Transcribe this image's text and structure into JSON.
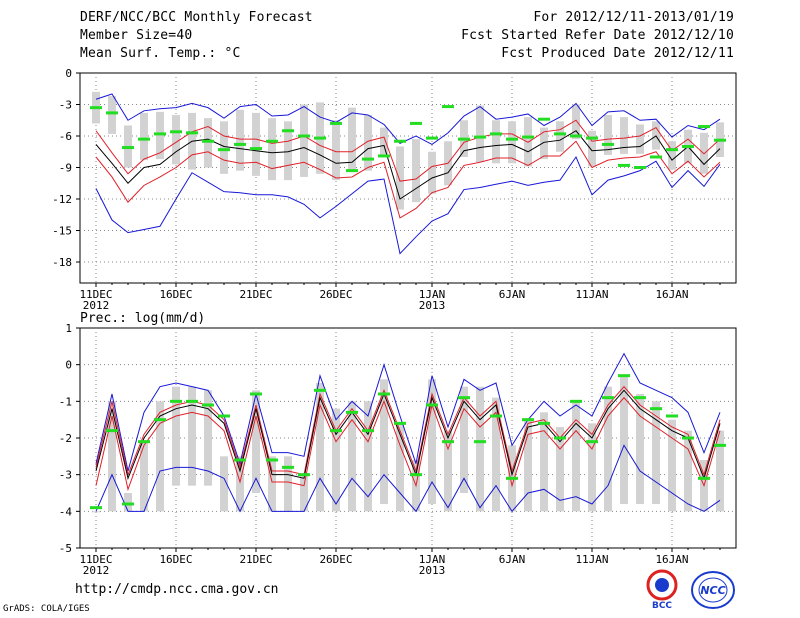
{
  "header": {
    "title": "DERF/NCC/BCC Monthly Forecast",
    "member_size": "Member Size=40",
    "variable": "Mean Surf. Temp.: °C",
    "period": "For 2012/12/11-2013/01/19",
    "fcst_started": "Fcst Started Refer Date 2012/12/10",
    "fcst_produced": "Fcst Produced Date 2012/12/11"
  },
  "footer": {
    "url": "http://cmdp.ncc.cma.gov.cn",
    "grads": "GrADS: COLA/IGES",
    "logo_bcc": "BCC",
    "logo_ncc": "NCC"
  },
  "colors": {
    "box": "#d2d2d2",
    "median": "#000000",
    "quartile": "#e0202a",
    "extreme": "#1818d8",
    "observed": "#22dd22"
  },
  "chart_data": [
    {
      "type": "box",
      "title": "Mean Surf. Temp.: °C",
      "x_tick_labels": [
        "11DEC\n2012",
        "16DEC",
        "21DEC",
        "26DEC",
        "1JAN\n2013",
        "6JAN",
        "11JAN",
        "16JAN"
      ],
      "x_tick_index": [
        0,
        5,
        10,
        15,
        21,
        26,
        31,
        36
      ],
      "ylim": [
        -20,
        0
      ],
      "yticks": [
        0,
        -3,
        -6,
        -9,
        -12,
        -15,
        -18
      ],
      "days": 40,
      "median": [
        -6.8,
        -8.6,
        -10.5,
        -9.0,
        -8.7,
        -7.5,
        -6.5,
        -6.3,
        -7.0,
        -7.2,
        -7.4,
        -7.6,
        -7.5,
        -7.1,
        -7.8,
        -8.6,
        -8.5,
        -7.2,
        -6.9,
        -12.0,
        -11.0,
        -10.0,
        -9.5,
        -7.4,
        -7.1,
        -6.9,
        -6.8,
        -7.5,
        -6.6,
        -6.4,
        -5.5,
        -7.4,
        -7.3,
        -7.1,
        -7.0,
        -6.0,
        -8.3,
        -7.0,
        -8.7,
        -7.2
      ],
      "q75": [
        -5.5,
        -7.6,
        -9.6,
        -8.2,
        -7.6,
        -6.6,
        -5.6,
        -5.1,
        -6.0,
        -6.3,
        -6.3,
        -6.7,
        -6.5,
        -6.0,
        -6.9,
        -7.5,
        -7.5,
        -6.5,
        -6.1,
        -10.3,
        -10.1,
        -8.9,
        -8.6,
        -6.6,
        -6.1,
        -5.8,
        -5.8,
        -6.6,
        -5.6,
        -5.4,
        -4.5,
        -6.5,
        -6.3,
        -6.2,
        -6.0,
        -5.2,
        -7.4,
        -6.3,
        -7.7,
        -6.3
      ],
      "q25": [
        -8.0,
        -9.9,
        -12.3,
        -10.7,
        -9.9,
        -9.0,
        -7.8,
        -7.5,
        -8.3,
        -8.6,
        -8.5,
        -9.1,
        -8.8,
        -8.5,
        -9.2,
        -10.0,
        -9.9,
        -9.0,
        -8.5,
        -13.8,
        -12.9,
        -11.4,
        -10.9,
        -8.8,
        -8.5,
        -8.1,
        -8.1,
        -8.8,
        -7.9,
        -7.9,
        -6.5,
        -9.0,
        -8.3,
        -8.1,
        -8.0,
        -7.5,
        -9.6,
        -8.4,
        -9.9,
        -8.5
      ],
      "max": [
        -2.5,
        -2.0,
        -4.5,
        -3.6,
        -3.4,
        -3.3,
        -2.9,
        -3.3,
        -4.3,
        -3.2,
        -3.0,
        -4.1,
        -4.0,
        -3.2,
        -4.2,
        -4.7,
        -3.8,
        -4.0,
        -4.9,
        -6.7,
        -6.0,
        -6.8,
        -5.7,
        -4.1,
        -3.2,
        -4.4,
        -4.2,
        -3.9,
        -5.0,
        -4.2,
        -2.9,
        -5.0,
        -3.7,
        -3.6,
        -4.5,
        -4.4,
        -6.1,
        -5.0,
        -5.4,
        -4.4
      ],
      "min": [
        -11.0,
        -14.0,
        -15.2,
        -14.9,
        -14.6,
        -12.0,
        -9.5,
        -10.4,
        -11.3,
        -11.4,
        -11.6,
        -11.6,
        -11.8,
        -12.5,
        -13.8,
        -12.7,
        -11.5,
        -10.3,
        -10.1,
        -17.2,
        -15.6,
        -14.1,
        -13.4,
        -11.1,
        -10.9,
        -10.6,
        -10.3,
        -10.7,
        -10.4,
        -10.2,
        -8.0,
        -11.6,
        -10.2,
        -9.8,
        -9.3,
        -8.4,
        -10.9,
        -9.3,
        -10.8,
        -8.7
      ],
      "box_top": [
        -1.8,
        -2.2,
        -5.0,
        -3.8,
        -3.7,
        -4.0,
        -3.8,
        -4.3,
        -4.6,
        -3.5,
        -3.8,
        -4.3,
        -4.6,
        -3.0,
        -2.8,
        -4.5,
        -3.3,
        -4.0,
        -5.2,
        -7.0,
        -6.3,
        -7.5,
        -6.5,
        -4.5,
        -3.1,
        -4.5,
        -4.6,
        -4.2,
        -5.2,
        -4.6,
        -3.0,
        -5.5,
        -4.0,
        -4.2,
        -4.9,
        -4.6,
        -6.5,
        -5.4,
        -5.7,
        -4.7
      ],
      "box_bot": [
        -4.8,
        -5.8,
        -9.0,
        -8.3,
        -8.2,
        -8.7,
        -9.2,
        -9.0,
        -9.6,
        -9.3,
        -9.8,
        -10.2,
        -10.2,
        -9.9,
        -9.6,
        -10.2,
        -9.4,
        -9.3,
        -8.0,
        -13.0,
        -12.3,
        -11.5,
        -10.7,
        -8.0,
        -8.5,
        -8.6,
        -8.6,
        -8.9,
        -8.2,
        -7.5,
        -6.3,
        -8.9,
        -7.8,
        -7.7,
        -7.7,
        -7.3,
        -9.2,
        -8.6,
        -9.6,
        -8.0
      ],
      "observed": [
        -3.3,
        -3.8,
        -7.1,
        -6.3,
        -5.8,
        -5.6,
        -5.7,
        -6.5,
        -7.3,
        -6.8,
        -7.2,
        -6.5,
        -5.5,
        -6.0,
        -6.2,
        -4.8,
        -9.3,
        -8.2,
        -7.9,
        -6.5,
        -4.8,
        -6.2,
        -3.2,
        -6.3,
        -6.1,
        -5.8,
        -6.3,
        -6.1,
        -4.4,
        -5.8,
        -6.0,
        -6.2,
        -6.8,
        -8.8,
        -9.0,
        -8.0,
        -7.3,
        -7.0,
        -5.1,
        -6.4
      ]
    },
    {
      "type": "box",
      "title": "Prec.: log(mm/d)",
      "x_tick_labels": [
        "11DEC\n2012",
        "16DEC",
        "21DEC",
        "26DEC",
        "1JAN\n2013",
        "6JAN",
        "11JAN",
        "16JAN"
      ],
      "x_tick_index": [
        0,
        5,
        10,
        15,
        21,
        26,
        31,
        36
      ],
      "ylim": [
        -5,
        1
      ],
      "yticks": [
        1,
        0,
        -1,
        -2,
        -3,
        -4,
        -5
      ],
      "days": 40,
      "median": [
        -2.9,
        -1.2,
        -3.1,
        -2.0,
        -1.4,
        -1.2,
        -1.1,
        -1.2,
        -1.6,
        -2.9,
        -1.2,
        -3.0,
        -3.0,
        -3.1,
        -0.9,
        -1.9,
        -1.3,
        -1.9,
        -0.8,
        -1.9,
        -3.0,
        -0.9,
        -2.0,
        -1.0,
        -1.5,
        -1.1,
        -3.0,
        -1.7,
        -1.6,
        -2.1,
        -1.6,
        -2.0,
        -1.2,
        -0.7,
        -1.2,
        -1.5,
        -1.8,
        -2.0,
        -3.1,
        -1.6
      ],
      "q75": [
        -2.8,
        -1.0,
        -3.0,
        -1.9,
        -1.3,
        -1.1,
        -1.0,
        -1.1,
        -1.5,
        -2.8,
        -1.1,
        -2.9,
        -2.9,
        -3.0,
        -0.8,
        -1.8,
        -1.2,
        -1.8,
        -0.7,
        -1.8,
        -2.9,
        -0.8,
        -1.9,
        -0.9,
        -1.4,
        -1.0,
        -2.9,
        -1.6,
        -1.5,
        -2.0,
        -1.5,
        -1.9,
        -1.1,
        -0.6,
        -1.1,
        -1.4,
        -1.7,
        -1.9,
        -3.0,
        -1.5
      ],
      "q25": [
        -3.3,
        -1.4,
        -3.4,
        -2.2,
        -1.6,
        -1.4,
        -1.3,
        -1.4,
        -1.8,
        -3.2,
        -1.4,
        -3.2,
        -3.2,
        -3.3,
        -1.1,
        -2.1,
        -1.5,
        -2.1,
        -1.0,
        -2.2,
        -3.3,
        -1.1,
        -2.3,
        -1.2,
        -1.7,
        -1.3,
        -3.3,
        -1.9,
        -1.8,
        -2.3,
        -1.8,
        -2.3,
        -1.4,
        -0.9,
        -1.4,
        -1.7,
        -2.0,
        -2.3,
        -3.3,
        -1.8
      ],
      "max": [
        -2.7,
        -0.8,
        -2.9,
        -1.3,
        -0.6,
        -0.5,
        -0.6,
        -0.7,
        -1.4,
        -2.7,
        -0.8,
        -2.4,
        -2.4,
        -2.5,
        -0.3,
        -1.5,
        -1.0,
        -1.4,
        -0.0,
        -1.4,
        -2.7,
        -0.3,
        -1.7,
        -0.4,
        -0.7,
        -0.5,
        -2.2,
        -1.5,
        -1.0,
        -1.4,
        -1.1,
        -1.4,
        -0.5,
        0.3,
        -0.5,
        -0.7,
        -0.9,
        -1.3,
        -2.4,
        -1.3
      ],
      "min": [
        -4.0,
        -3.0,
        -4.0,
        -4.0,
        -2.9,
        -2.8,
        -2.8,
        -2.9,
        -3.1,
        -4.0,
        -3.1,
        -4.0,
        -4.0,
        -4.0,
        -3.1,
        -3.8,
        -3.1,
        -3.6,
        -3.0,
        -3.5,
        -4.0,
        -3.2,
        -3.9,
        -3.1,
        -3.9,
        -3.3,
        -4.0,
        -3.5,
        -3.4,
        -3.7,
        -3.6,
        -3.8,
        -3.3,
        -2.2,
        -2.9,
        -3.2,
        -3.5,
        -3.8,
        -4.0,
        -3.7
      ],
      "box_top": [
        -4.0,
        -1.0,
        -3.5,
        -2.1,
        -1.0,
        -0.6,
        -0.6,
        -0.7,
        -2.5,
        -2.5,
        -0.7,
        -2.5,
        -2.5,
        -3.0,
        -0.5,
        -1.2,
        -1.0,
        -1.0,
        -0.4,
        -1.6,
        -2.6,
        -0.4,
        -1.8,
        -0.6,
        -0.6,
        -0.9,
        -2.2,
        -1.5,
        -1.3,
        -1.7,
        -1.0,
        -1.6,
        -0.6,
        -0.3,
        -0.8,
        -1.0,
        -1.5,
        -1.8,
        -2.6,
        -1.8
      ],
      "box_bot": [
        -4.0,
        -4.0,
        -4.0,
        -4.0,
        -4.0,
        -3.3,
        -3.3,
        -3.3,
        -4.0,
        -4.0,
        -3.5,
        -4.0,
        -4.0,
        -4.0,
        -4.0,
        -4.0,
        -4.0,
        -4.0,
        -3.8,
        -4.0,
        -4.0,
        -3.8,
        -4.0,
        -3.5,
        -4.0,
        -4.0,
        -4.0,
        -4.0,
        -4.0,
        -4.0,
        -4.0,
        -4.0,
        -4.0,
        -3.8,
        -3.8,
        -3.8,
        -4.0,
        -4.0,
        -4.0,
        -4.0
      ],
      "observed": [
        -3.9,
        -1.8,
        -3.8,
        -2.1,
        -1.5,
        -1.0,
        -1.0,
        -1.1,
        -1.4,
        -2.6,
        -0.8,
        -2.6,
        -2.8,
        -3.0,
        -0.7,
        -1.8,
        -1.3,
        -1.8,
        -0.8,
        -1.6,
        -3.0,
        -1.1,
        -2.1,
        -0.9,
        -2.1,
        -1.4,
        -3.1,
        -1.5,
        -1.6,
        -2.0,
        -1.0,
        -2.1,
        -0.9,
        -0.3,
        -0.9,
        -1.2,
        -1.4,
        -2.0,
        -3.1,
        -2.2
      ]
    }
  ]
}
